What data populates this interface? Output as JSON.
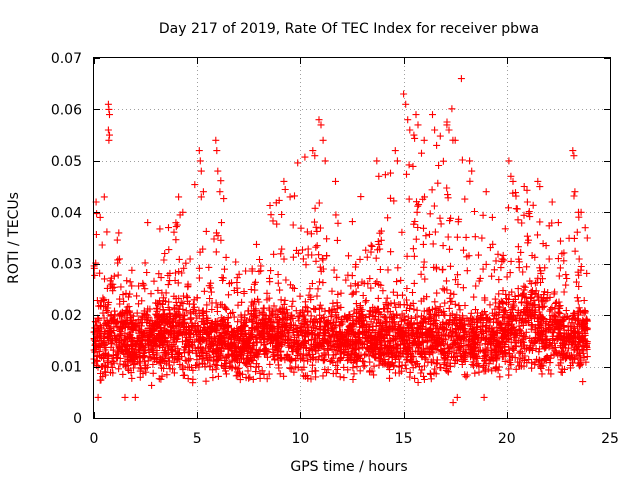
{
  "chart_data": {
    "type": "scatter",
    "title": "Day 217 of 2019, Rate Of TEC Index for receiver pbwa",
    "xlabel": "GPS time / hours",
    "ylabel": "ROTI / TECUs",
    "xlim": [
      0,
      25
    ],
    "ylim": [
      0,
      0.07
    ],
    "xticks": [
      0,
      5,
      10,
      15,
      20,
      25
    ],
    "xtick_labels": [
      "0",
      "5",
      "10",
      "15",
      "20",
      "25"
    ],
    "yticks": [
      0,
      0.01,
      0.02,
      0.03,
      0.04,
      0.05,
      0.06,
      0.07
    ],
    "ytick_labels": [
      "0",
      "0.01",
      "0.02",
      "0.03",
      "0.04",
      "0.05",
      "0.06",
      "0.07"
    ],
    "grid": true,
    "marker": "+",
    "series": [
      {
        "name": "ROTI",
        "color": "#ff0000",
        "profile": {
          "hours": [
            0,
            0.5,
            1,
            1.5,
            2,
            2.5,
            3,
            3.5,
            4,
            4.5,
            5,
            5.5,
            6,
            6.5,
            7,
            7.5,
            8,
            8.5,
            9,
            9.5,
            10,
            10.5,
            11,
            11.5,
            12,
            12.5,
            13,
            13.5,
            14,
            14.5,
            15,
            15.5,
            16,
            16.5,
            17,
            17.5,
            18,
            18.5,
            19,
            19.5,
            20,
            20.5,
            21,
            21.5,
            22,
            22.5,
            23,
            23.5,
            23.9
          ],
          "typical": [
            0.014,
            0.015,
            0.016,
            0.015,
            0.014,
            0.015,
            0.016,
            0.016,
            0.017,
            0.015,
            0.016,
            0.016,
            0.015,
            0.014,
            0.014,
            0.014,
            0.015,
            0.015,
            0.016,
            0.015,
            0.015,
            0.016,
            0.016,
            0.015,
            0.014,
            0.015,
            0.016,
            0.015,
            0.015,
            0.015,
            0.016,
            0.016,
            0.016,
            0.015,
            0.016,
            0.016,
            0.015,
            0.015,
            0.014,
            0.015,
            0.016,
            0.017,
            0.018,
            0.017,
            0.016,
            0.016,
            0.015,
            0.015,
            0.015
          ],
          "upper_envelope": [
            0.042,
            0.039,
            0.036,
            0.035,
            0.034,
            0.033,
            0.038,
            0.036,
            0.043,
            0.036,
            0.052,
            0.038,
            0.054,
            0.036,
            0.03,
            0.032,
            0.041,
            0.042,
            0.044,
            0.046,
            0.052,
            0.058,
            0.047,
            0.04,
            0.039,
            0.041,
            0.044,
            0.045,
            0.05,
            0.052,
            0.063,
            0.059,
            0.054,
            0.059,
            0.057,
            0.066,
            0.05,
            0.047,
            0.039,
            0.044,
            0.05,
            0.043,
            0.046,
            0.047,
            0.042,
            0.038,
            0.052,
            0.04,
            0.037
          ],
          "lower_envelope": [
            0.004,
            0.004,
            0.005,
            0.005,
            0.005,
            0.005,
            0.005,
            0.005,
            0.005,
            0.005,
            0.005,
            0.005,
            0.005,
            0.005,
            0.006,
            0.005,
            0.005,
            0.005,
            0.005,
            0.005,
            0.005,
            0.005,
            0.005,
            0.005,
            0.005,
            0.005,
            0.005,
            0.005,
            0.005,
            0.005,
            0.005,
            0.005,
            0.005,
            0.005,
            0.004,
            0.004,
            0.005,
            0.005,
            0.005,
            0.005,
            0.005,
            0.005,
            0.005,
            0.005,
            0.005,
            0.005,
            0.005,
            0.005,
            0.005
          ]
        },
        "points": [
          [
            0.1,
            0.042
          ],
          [
            0.3,
            0.039
          ],
          [
            0.5,
            0.043
          ],
          [
            0.7,
            0.061
          ],
          [
            0.72,
            0.06
          ],
          [
            0.75,
            0.059
          ],
          [
            0.7,
            0.056
          ],
          [
            0.75,
            0.055
          ],
          [
            0.72,
            0.054
          ],
          [
            1.2,
            0.036
          ],
          [
            2.6,
            0.038
          ],
          [
            4.1,
            0.043
          ],
          [
            4.3,
            0.04
          ],
          [
            5.1,
            0.052
          ],
          [
            5.15,
            0.05
          ],
          [
            5.2,
            0.048
          ],
          [
            5.3,
            0.044
          ],
          [
            5.2,
            0.043
          ],
          [
            5.9,
            0.054
          ],
          [
            5.95,
            0.052
          ],
          [
            6.0,
            0.048
          ],
          [
            6.1,
            0.044
          ],
          [
            9.2,
            0.046
          ],
          [
            9.5,
            0.043
          ],
          [
            10.6,
            0.052
          ],
          [
            10.7,
            0.051
          ],
          [
            10.9,
            0.058
          ],
          [
            11.0,
            0.057
          ],
          [
            11.1,
            0.054
          ],
          [
            11.2,
            0.05
          ],
          [
            11.7,
            0.046
          ],
          [
            13.7,
            0.05
          ],
          [
            13.8,
            0.047
          ],
          [
            14.6,
            0.052
          ],
          [
            14.7,
            0.05
          ],
          [
            15.0,
            0.063
          ],
          [
            15.1,
            0.061
          ],
          [
            15.2,
            0.058
          ],
          [
            15.3,
            0.056
          ],
          [
            15.6,
            0.059
          ],
          [
            15.7,
            0.057
          ],
          [
            15.5,
            0.055
          ],
          [
            16.0,
            0.054
          ],
          [
            16.4,
            0.059
          ],
          [
            16.5,
            0.056
          ],
          [
            16.6,
            0.053
          ],
          [
            17.1,
            0.057
          ],
          [
            17.2,
            0.056
          ],
          [
            17.5,
            0.054
          ],
          [
            17.8,
            0.066
          ],
          [
            18.2,
            0.05
          ],
          [
            18.3,
            0.048
          ],
          [
            19.0,
            0.044
          ],
          [
            19.3,
            0.039
          ],
          [
            20.1,
            0.05
          ],
          [
            20.2,
            0.047
          ],
          [
            20.3,
            0.046
          ],
          [
            21.0,
            0.042
          ],
          [
            21.5,
            0.046
          ],
          [
            21.6,
            0.045
          ],
          [
            22.2,
            0.042
          ],
          [
            22.5,
            0.038
          ],
          [
            23.2,
            0.052
          ],
          [
            23.25,
            0.051
          ],
          [
            23.3,
            0.044
          ],
          [
            23.6,
            0.04
          ],
          [
            23.8,
            0.037
          ],
          [
            23.9,
            0.035
          ],
          [
            0.2,
            0.004
          ],
          [
            1.5,
            0.004
          ],
          [
            2.0,
            0.004
          ],
          [
            17.4,
            0.003
          ],
          [
            17.6,
            0.004
          ],
          [
            18.9,
            0.004
          ]
        ]
      }
    ]
  }
}
